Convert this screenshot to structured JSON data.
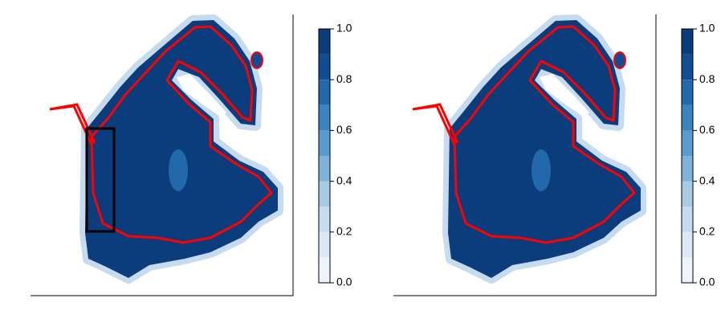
{
  "chart_data": [
    {
      "type": "raster",
      "colorbar": {
        "lim": [
          0,
          1
        ],
        "ticks": [
          {
            "value": 0,
            "label": "0.0"
          },
          {
            "value": 0.2,
            "label": "0.2"
          },
          {
            "value": 0.4,
            "label": "0.4"
          },
          {
            "value": 0.6,
            "label": "0.6"
          },
          {
            "value": 0.8,
            "label": "0.8"
          },
          {
            "value": 1,
            "label": "1.0"
          }
        ],
        "colors": [
          "#eef4fb",
          "#dbe9f6",
          "#c6dbef",
          "#a6cbe3",
          "#7fb2d8",
          "#5a9bcd",
          "#3b83be",
          "#2468ac",
          "#124d93",
          "#0b3c7c"
        ]
      },
      "contour_color": "#ff0000",
      "highlight_box": true
    },
    {
      "type": "raster",
      "colorbar": {
        "lim": [
          0,
          1
        ],
        "ticks": [
          {
            "value": 0,
            "label": "0.0"
          },
          {
            "value": 0.2,
            "label": "0.2"
          },
          {
            "value": 0.4,
            "label": "0.4"
          },
          {
            "value": 0.6,
            "label": "0.6"
          },
          {
            "value": 0.8,
            "label": "0.8"
          },
          {
            "value": 1,
            "label": "1.0"
          }
        ],
        "colors": [
          "#eef4fb",
          "#dbe9f6",
          "#c6dbef",
          "#a6cbe3",
          "#7fb2d8",
          "#5a9bcd",
          "#3b83be",
          "#2468ac",
          "#124d93",
          "#0b3c7c"
        ]
      },
      "contour_color": "#ff0000",
      "highlight_box": false
    }
  ]
}
